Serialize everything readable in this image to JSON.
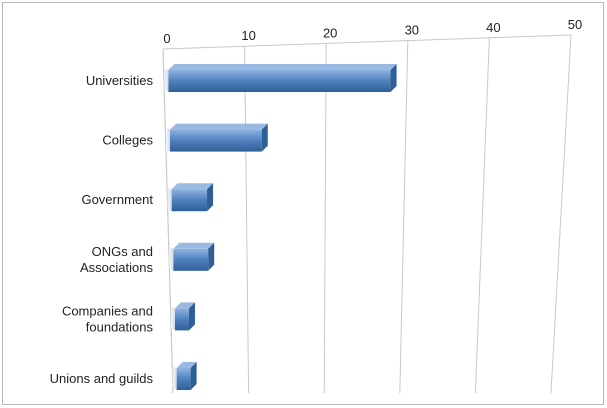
{
  "chart_data": {
    "type": "bar",
    "orientation": "horizontal",
    "style": "3d-perspective",
    "categories": [
      [
        "Universities"
      ],
      [
        "Colleges"
      ],
      [
        "Government"
      ],
      [
        "ONGs and",
        "Associations"
      ],
      [
        "Companies and",
        "foundations"
      ],
      [
        "Unions and guilds"
      ]
    ],
    "values": [
      28,
      12,
      5,
      5,
      1,
      1
    ],
    "xticks": [
      0,
      10,
      20,
      30,
      40,
      50
    ],
    "xlim": [
      0,
      50
    ],
    "title": "",
    "xlabel": "",
    "ylabel": "",
    "grid": true,
    "legend": "none",
    "colors": {
      "bar": "#4f81bd",
      "bar_light": "#8fb3e0",
      "bar_dark": "#2f5f97",
      "grid": "#c8c8c8"
    }
  }
}
